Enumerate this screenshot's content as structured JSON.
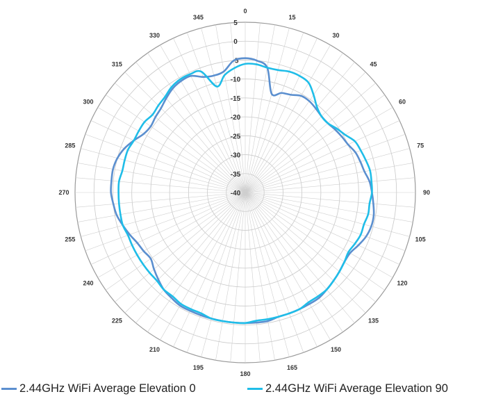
{
  "chart_data": {
    "type": "polar-line",
    "title": "",
    "angle_labels": [
      "0",
      "15",
      "30",
      "45",
      "60",
      "75",
      "90",
      "105",
      "120",
      "135",
      "150",
      "165",
      "180",
      "195",
      "210",
      "225",
      "240",
      "255",
      "270",
      "285",
      "300",
      "315",
      "330",
      "345"
    ],
    "radial_labels": [
      "5",
      "0",
      "-5",
      "-10",
      "-15",
      "-20",
      "-25",
      "-30",
      "-35",
      "-40"
    ],
    "rlim": [
      -40,
      5
    ],
    "rgrid_step": 5,
    "angle_grid_step": 5,
    "grid": true,
    "direction": "clockwise",
    "zero_location": "top",
    "legend_placement": "bottom",
    "series": [
      {
        "name": "2.44GHz WiFi Average Elevation 0",
        "color": "#5b8fcf",
        "angles": [
          0,
          5,
          10,
          15,
          20,
          25,
          30,
          35,
          40,
          45,
          50,
          55,
          60,
          65,
          70,
          75,
          80,
          85,
          90,
          95,
          100,
          105,
          110,
          115,
          120,
          125,
          130,
          135,
          140,
          145,
          150,
          155,
          160,
          165,
          170,
          175,
          180,
          185,
          190,
          195,
          200,
          205,
          210,
          215,
          220,
          225,
          230,
          235,
          240,
          245,
          250,
          255,
          260,
          265,
          270,
          275,
          280,
          285,
          290,
          295,
          300,
          305,
          310,
          315,
          320,
          325,
          330,
          335,
          340,
          345,
          350,
          355
        ],
        "values": [
          -4.5,
          -5,
          -6.5,
          -13,
          -12,
          -11.5,
          -10.5,
          -10.5,
          -11,
          -11.5,
          -11.5,
          -11,
          -10.5,
          -10,
          -9,
          -8.5,
          -8,
          -7,
          -6.5,
          -6,
          -5.5,
          -5.5,
          -6,
          -7,
          -8,
          -8,
          -7.5,
          -7,
          -6.5,
          -6,
          -6,
          -6,
          -6,
          -6,
          -5.5,
          -5.5,
          -5.5,
          -5.5,
          -5.5,
          -5.5,
          -5.5,
          -5.5,
          -5.5,
          -6,
          -6.5,
          -7.5,
          -8.5,
          -9.5,
          -9,
          -8.5,
          -7.5,
          -6.5,
          -5.5,
          -5,
          -4.5,
          -4.5,
          -4.5,
          -5,
          -6,
          -7.5,
          -9,
          -9.5,
          -9,
          -8.5,
          -7.5,
          -6.5,
          -6,
          -6,
          -7.5,
          -8,
          -7.5,
          -5
        ]
      },
      {
        "name": "2.44GHz WiFi Average Elevation 90",
        "color": "#1fbde8",
        "angles": [
          0,
          5,
          10,
          15,
          20,
          25,
          30,
          35,
          40,
          45,
          50,
          55,
          60,
          65,
          70,
          75,
          80,
          85,
          90,
          95,
          100,
          105,
          110,
          115,
          120,
          125,
          130,
          135,
          140,
          145,
          150,
          155,
          160,
          165,
          170,
          175,
          180,
          185,
          190,
          195,
          200,
          205,
          210,
          215,
          220,
          225,
          230,
          235,
          240,
          245,
          250,
          255,
          260,
          265,
          270,
          275,
          280,
          285,
          290,
          295,
          300,
          305,
          310,
          315,
          320,
          325,
          330,
          335,
          340,
          345,
          350,
          355
        ],
        "values": [
          -6,
          -6,
          -6.5,
          -6.5,
          -6,
          -6,
          -6.5,
          -8.5,
          -10.5,
          -11.5,
          -11.5,
          -10.5,
          -9.5,
          -8,
          -7.5,
          -7,
          -6.5,
          -6.5,
          -6.5,
          -7,
          -7,
          -7.5,
          -7.5,
          -8,
          -8.5,
          -8,
          -7.5,
          -7,
          -6.5,
          -6.5,
          -6.5,
          -6,
          -6,
          -6,
          -6,
          -6,
          -5.5,
          -5.5,
          -5.5,
          -5.5,
          -6,
          -6,
          -6,
          -6.5,
          -6.5,
          -7,
          -7,
          -7,
          -7,
          -7,
          -7,
          -6.5,
          -6.5,
          -6.5,
          -6.5,
          -6.5,
          -7,
          -7,
          -7,
          -7.5,
          -7.5,
          -7.5,
          -8,
          -7.5,
          -7,
          -6,
          -5.5,
          -5.5,
          -6,
          -11,
          -8.5,
          -7
        ]
      }
    ]
  }
}
